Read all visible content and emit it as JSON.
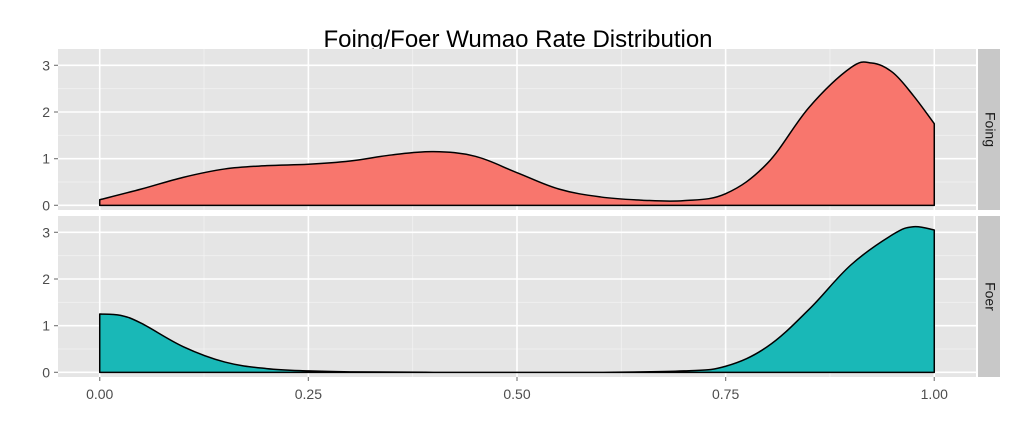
{
  "chart_data": {
    "type": "area",
    "title": "Foing/Foer Wumao Rate Distribution",
    "xlabel": "",
    "ylabel": "",
    "xlim": [
      -0.05,
      1.05
    ],
    "ylim": [
      -0.1,
      3.35
    ],
    "x_ticks": [
      0.0,
      0.25,
      0.5,
      0.75,
      1.0
    ],
    "x_tick_labels": [
      "0.00",
      "0.25",
      "0.50",
      "0.75",
      "1.00"
    ],
    "y_ticks": [
      0,
      1,
      2,
      3
    ],
    "y_tick_labels": [
      "0",
      "1",
      "2",
      "3"
    ],
    "grid": true,
    "facet": "rows",
    "panel_background": "#e5e5e5",
    "strip_background": "#c8c8c8",
    "panels": [
      {
        "name": "Foing",
        "color": "#f8766d",
        "x": [
          0.0,
          0.05,
          0.1,
          0.15,
          0.2,
          0.25,
          0.3,
          0.35,
          0.4,
          0.45,
          0.5,
          0.55,
          0.6,
          0.65,
          0.7,
          0.75,
          0.8,
          0.85,
          0.9,
          0.925,
          0.95,
          0.975,
          1.0
        ],
        "y": [
          0.12,
          0.35,
          0.6,
          0.78,
          0.85,
          0.88,
          0.95,
          1.08,
          1.15,
          1.05,
          0.7,
          0.35,
          0.18,
          0.11,
          0.1,
          0.25,
          0.9,
          2.1,
          2.95,
          3.05,
          2.85,
          2.35,
          1.75
        ]
      },
      {
        "name": "Foer",
        "color": "#19b8b7",
        "x": [
          0.0,
          0.025,
          0.05,
          0.1,
          0.15,
          0.2,
          0.25,
          0.3,
          0.4,
          0.5,
          0.6,
          0.7,
          0.75,
          0.8,
          0.85,
          0.9,
          0.95,
          0.975,
          1.0
        ],
        "y": [
          1.25,
          1.22,
          1.05,
          0.55,
          0.22,
          0.08,
          0.03,
          0.01,
          0.0,
          0.0,
          0.0,
          0.03,
          0.13,
          0.55,
          1.35,
          2.3,
          2.95,
          3.12,
          3.05
        ]
      }
    ]
  }
}
